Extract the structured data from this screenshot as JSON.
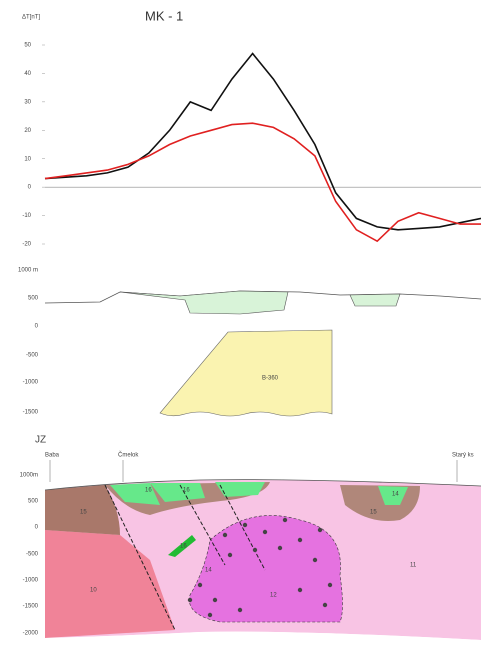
{
  "chart_data": {
    "type": "line",
    "title": "MK - 1",
    "y_label": "ΔT[nT]",
    "categories": [
      null,
      null,
      null,
      null,
      null,
      null,
      null,
      null,
      null,
      null,
      null,
      null,
      null,
      null,
      null,
      null,
      null,
      null,
      null,
      null,
      null,
      null
    ],
    "series": [
      {
        "color": "#111111",
        "values": [
          3,
          3.5,
          4,
          5,
          7,
          12,
          20,
          30,
          27,
          38,
          47,
          38,
          27,
          15,
          -2,
          -11,
          -14,
          -15,
          -14.5,
          -14,
          -12.5,
          -11
        ]
      },
      {
        "color": "#e02020",
        "values": [
          3,
          4,
          5,
          6,
          8,
          11,
          15,
          18,
          20,
          22,
          22.5,
          21,
          17,
          11,
          -5,
          -15,
          -19,
          -12,
          -9,
          -11,
          -13,
          -13
        ]
      }
    ],
    "ylim": [
      -20,
      50
    ],
    "yticks": [
      -20,
      -10,
      0,
      10,
      20,
      30,
      40,
      50
    ],
    "grid": false
  },
  "model_section": {
    "yticks": [
      "1000 m",
      "500",
      "0",
      "-500",
      "-1000",
      "-1500"
    ],
    "body_label": "B-360"
  },
  "geology_section": {
    "direction": "JZ",
    "places": [
      "Baba",
      "Čmelok",
      "Starý ks"
    ],
    "yticks": [
      "1000m",
      "500",
      "0",
      "-500",
      "-1000",
      "-1500",
      "-2000"
    ],
    "units": [
      "15",
      "16",
      "16",
      "14",
      "15",
      "10",
      "14",
      "12",
      "11",
      "16"
    ]
  }
}
